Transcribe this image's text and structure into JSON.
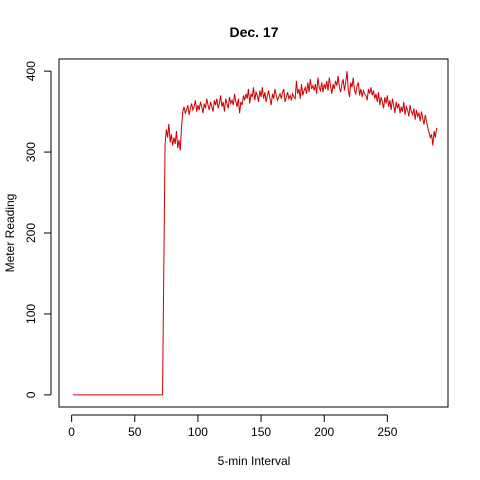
{
  "chart_data": {
    "type": "line",
    "title": "Dec. 17",
    "xlabel": "5-min Interval",
    "ylabel": "Meter Reading",
    "xlim": [
      -10,
      298
    ],
    "ylim": [
      -15,
      415
    ],
    "xticks": [
      0,
      50,
      100,
      150,
      200,
      250
    ],
    "yticks": [
      0,
      100,
      200,
      300,
      400
    ],
    "grid": false,
    "line_color": "#cc0000",
    "series": [
      {
        "x_start": 1,
        "x_step": 1,
        "values": [
          0,
          0,
          0,
          0,
          0,
          0,
          0,
          0,
          0,
          0,
          0,
          0,
          0,
          0,
          0,
          0,
          0,
          0,
          0,
          0,
          0,
          0,
          0,
          0,
          0,
          0,
          0,
          0,
          0,
          0,
          0,
          0,
          0,
          0,
          0,
          0,
          0,
          0,
          0,
          0,
          0,
          0,
          0,
          0,
          0,
          0,
          0,
          0,
          0,
          0,
          0,
          0,
          0,
          0,
          0,
          0,
          0,
          0,
          0,
          0,
          0,
          0,
          0,
          0,
          0,
          0,
          0,
          0,
          0,
          0,
          0,
          0,
          160,
          310,
          328,
          318,
          335,
          312,
          322,
          308,
          318,
          310,
          326,
          305,
          315,
          302,
          330,
          350,
          356,
          348,
          352,
          358,
          346,
          354,
          360,
          352,
          356,
          364,
          350,
          358,
          352,
          362,
          356,
          348,
          360,
          354,
          366,
          358,
          352,
          362,
          356,
          350,
          364,
          358,
          366,
          354,
          360,
          370,
          356,
          362,
          350,
          366,
          360,
          354,
          368,
          360,
          364,
          358,
          372,
          362,
          356,
          366,
          348,
          362,
          358,
          370,
          364,
          372,
          366,
          378,
          360,
          372,
          368,
          380,
          364,
          374,
          370,
          362,
          376,
          368,
          380,
          366,
          374,
          362,
          370,
          376,
          366,
          358,
          372,
          366,
          378,
          370,
          364,
          368,
          372,
          366,
          374,
          378,
          362,
          368,
          374,
          366,
          370,
          364,
          372,
          368,
          366,
          388,
          372,
          378,
          366,
          384,
          370,
          376,
          380,
          372,
          386,
          374,
          390,
          378,
          382,
          376,
          384,
          372,
          392,
          380,
          376,
          386,
          374,
          384,
          378,
          388,
          376,
          392,
          382,
          372,
          384,
          378,
          388,
          382,
          394,
          380,
          374,
          384,
          390,
          376,
          386,
          400,
          378,
          368,
          386,
          380,
          392,
          376,
          372,
          382,
          386,
          370,
          378,
          368,
          376,
          372,
          370,
          364,
          378,
          372,
          380,
          370,
          376,
          366,
          372,
          362,
          374,
          358,
          368,
          362,
          354,
          368,
          360,
          370,
          356,
          364,
          352,
          366,
          358,
          348,
          362,
          354,
          360,
          348,
          356,
          350,
          362,
          346,
          356,
          352,
          344,
          358,
          350,
          346,
          354,
          340,
          352,
          344,
          348,
          338,
          350,
          342,
          334,
          346,
          338,
          330,
          324,
          318,
          322,
          308,
          326,
          318,
          330
        ]
      }
    ]
  }
}
